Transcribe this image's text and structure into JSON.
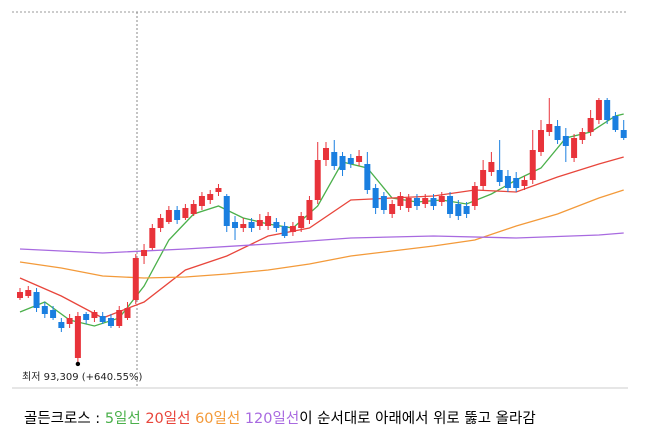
{
  "chart_data": {
    "type": "candlestick",
    "up_color": "#e8333a",
    "down_color": "#1a7fe0",
    "ylim": [
      86800,
      180800
    ],
    "open": [
      109300,
      109800,
      110800,
      107300,
      106300,
      103300,
      102800,
      94300,
      105300,
      104300,
      104800,
      104300,
      102300,
      104300,
      108800,
      119800,
      121800,
      126800,
      128300,
      131300,
      129300,
      130300,
      132300,
      133800,
      135800,
      134800,
      128300,
      126800,
      128300,
      127300,
      127300,
      128300,
      127300,
      125800,
      126800,
      128800,
      133800,
      143800,
      145800,
      144800,
      144300,
      143300,
      142800,
      136800,
      134800,
      130300,
      132300,
      131800,
      134300,
      132800,
      134300,
      133300,
      134800,
      132800,
      132300,
      132300,
      137300,
      140800,
      141300,
      139800,
      139300,
      137300,
      138800,
      145800,
      150800,
      152300,
      149800,
      144300,
      148800,
      150800,
      153800,
      158800,
      154800,
      151300
    ],
    "high": [
      111800,
      112300,
      111800,
      108300,
      107300,
      104300,
      105300,
      105800,
      105800,
      106300,
      105800,
      105300,
      107300,
      108300,
      120300,
      122800,
      127800,
      130300,
      132300,
      132300,
      132800,
      133800,
      135800,
      136300,
      137800,
      135300,
      129800,
      129300,
      129300,
      130300,
      130800,
      129300,
      128300,
      128300,
      130800,
      134800,
      148300,
      148300,
      148800,
      145800,
      145300,
      146300,
      145800,
      137800,
      135800,
      133800,
      135800,
      135300,
      135300,
      135300,
      135300,
      135800,
      135800,
      133800,
      133300,
      138300,
      143800,
      145800,
      148800,
      141300,
      140800,
      139800,
      151300,
      153800,
      159300,
      153800,
      151800,
      150300,
      151800,
      156300,
      159300,
      159300,
      155800,
      153800
    ],
    "low": [
      108800,
      109300,
      105800,
      104300,
      103800,
      100800,
      101800,
      93309,
      102800,
      103300,
      102800,
      101800,
      101800,
      103800,
      107800,
      117800,
      121300,
      125800,
      127800,
      127800,
      128800,
      129800,
      131300,
      132800,
      134800,
      125800,
      123800,
      125800,
      125800,
      126300,
      126300,
      125800,
      124300,
      124800,
      125800,
      127800,
      132800,
      142300,
      141300,
      139800,
      141800,
      142300,
      135300,
      130300,
      130300,
      129300,
      131300,
      130800,
      131300,
      131800,
      131300,
      132300,
      129300,
      128800,
      129300,
      131300,
      136300,
      139800,
      137300,
      135800,
      135800,
      136300,
      137800,
      144800,
      149800,
      147800,
      143300,
      143300,
      147800,
      149800,
      152800,
      152800,
      150800,
      148800
    ],
    "close": [
      110800,
      111300,
      106800,
      105300,
      104300,
      101800,
      104300,
      104800,
      103800,
      105800,
      103300,
      102300,
      106300,
      106800,
      119300,
      121300,
      126800,
      129300,
      131300,
      128800,
      131800,
      132800,
      134800,
      135300,
      136800,
      127300,
      126800,
      127800,
      126800,
      128800,
      129800,
      126800,
      124800,
      127300,
      129800,
      133800,
      143800,
      146800,
      142300,
      141300,
      142800,
      144800,
      136300,
      131800,
      131300,
      132800,
      134800,
      134300,
      132300,
      134300,
      132300,
      134800,
      130300,
      129800,
      130300,
      137300,
      141300,
      143300,
      138300,
      136800,
      136800,
      138800,
      146300,
      151300,
      152800,
      148800,
      147300,
      149300,
      150800,
      154300,
      158800,
      153800,
      151300,
      149300
    ],
    "annotation": "최저 93,309 (+640.55%)",
    "series": [
      {
        "name": "5일선",
        "color": "#4bb04b",
        "x": [
          0,
          3,
          6,
          9,
          12,
          15,
          18,
          21,
          24,
          27,
          30,
          33,
          36,
          39,
          42,
          45,
          48,
          51,
          54,
          57,
          60,
          63,
          66,
          69,
          72,
          73
        ],
        "values": [
          105800,
          108300,
          103800,
          102300,
          104300,
          112300,
          123800,
          130300,
          132300,
          129300,
          127800,
          126800,
          132300,
          143300,
          141800,
          134300,
          133300,
          133800,
          132800,
          135300,
          138800,
          141800,
          149300,
          150800,
          154800,
          155300
        ]
      },
      {
        "name": "20일선",
        "color": "#e8463c",
        "x": [
          0,
          5,
          10,
          15,
          20,
          25,
          30,
          35,
          40,
          45,
          50,
          55,
          60,
          65,
          70,
          73
        ],
        "values": [
          114300,
          109800,
          104300,
          108300,
          116300,
          119800,
          124800,
          126800,
          133800,
          134300,
          134800,
          136300,
          135800,
          139550,
          142800,
          144550
        ]
      },
      {
        "name": "60일선",
        "color": "#f39a3a",
        "x": [
          0,
          5,
          10,
          15,
          20,
          25,
          30,
          35,
          40,
          45,
          50,
          55,
          60,
          65,
          70,
          73
        ],
        "values": [
          118300,
          116800,
          114800,
          114300,
          114550,
          115300,
          116300,
          117800,
          119800,
          121050,
          122300,
          123800,
          127300,
          130300,
          134300,
          136300
        ]
      },
      {
        "name": "120일선",
        "color": "#a86ae0",
        "x": [
          0,
          10,
          20,
          30,
          40,
          50,
          60,
          70,
          73
        ],
        "values": [
          121550,
          120550,
          121550,
          122800,
          124300,
          124800,
          124300,
          125050,
          125550
        ]
      }
    ],
    "caption_prefix": "골든크로스 : ",
    "caption_suffix": "이 순서대로 아래에서 위로 뚫고 올라감"
  }
}
